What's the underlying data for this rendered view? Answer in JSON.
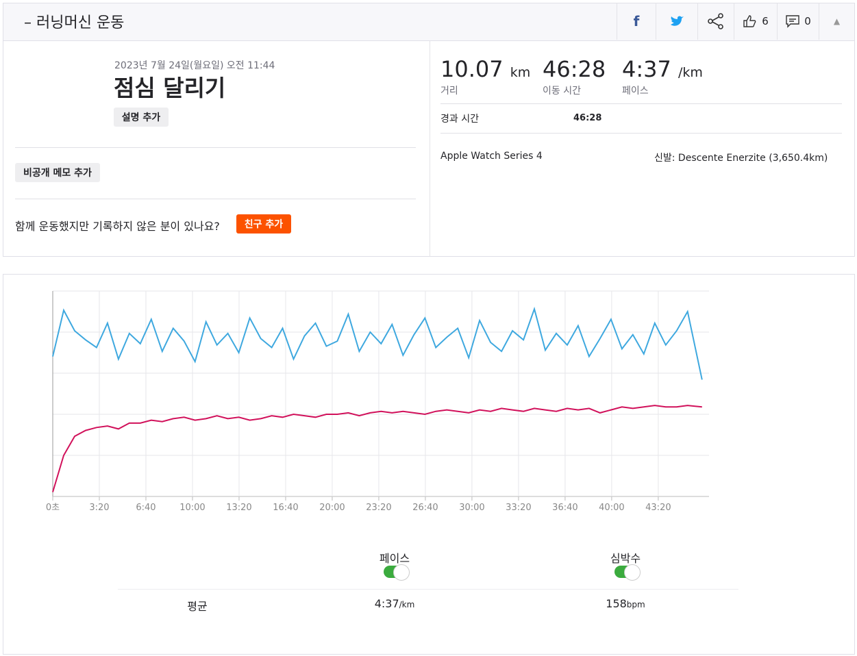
{
  "header": {
    "title": "– 러닝머신 운동",
    "kudos": "6",
    "comments": "0"
  },
  "activity": {
    "date": "2023년 7월 24일(월요일) 오전 11:44",
    "name": "점심 달리기",
    "add_description": "설명 추가",
    "add_private_note": "비공개 메모 추가",
    "friends_question": "함께 운동했지만 기록하지 않은 분이 있나요?",
    "add_friend": "친구 추가"
  },
  "stats": {
    "distance": "10.07",
    "distance_unit": "km",
    "distance_label": "거리",
    "moving_time": "46:28",
    "moving_time_label": "이동 시간",
    "pace": "4:37",
    "pace_unit": "/km",
    "pace_label": "페이스",
    "elapsed_label": "경과 시간",
    "elapsed": "46:28",
    "device": "Apple Watch Series 4",
    "shoes": "신발: Descente Enerzite (3,650.4km)"
  },
  "chart_data": {
    "type": "line",
    "x": [
      0,
      47,
      94,
      141,
      188,
      235,
      282,
      329,
      376,
      423,
      470,
      517,
      564,
      611,
      658,
      705,
      752,
      799,
      846,
      893,
      940,
      987,
      1034,
      1081,
      1128,
      1175,
      1222,
      1269,
      1316,
      1363,
      1410,
      1457,
      1504,
      1551,
      1598,
      1645,
      1692,
      1739,
      1786,
      1833,
      1880,
      1927,
      1974,
      2021,
      2068,
      2115,
      2162,
      2209,
      2256,
      2303,
      2350,
      2397,
      2444,
      2491,
      2538,
      2585,
      2632,
      2679,
      2726,
      2788
    ],
    "xlim": [
      0,
      2818
    ],
    "xticks": [
      {
        "value": 0,
        "label": "0초"
      },
      {
        "value": 200,
        "label": "3:20"
      },
      {
        "value": 400,
        "label": "6:40"
      },
      {
        "value": 600,
        "label": "10:00"
      },
      {
        "value": 800,
        "label": "13:20"
      },
      {
        "value": 1000,
        "label": "16:40"
      },
      {
        "value": 1200,
        "label": "20:00"
      },
      {
        "value": 1400,
        "label": "23:20"
      },
      {
        "value": 1600,
        "label": "26:40"
      },
      {
        "value": 1800,
        "label": "30:00"
      },
      {
        "value": 2000,
        "label": "33:20"
      },
      {
        "value": 2200,
        "label": "36:40"
      },
      {
        "value": 2400,
        "label": "40:00"
      },
      {
        "value": 2600,
        "label": "43:20"
      }
    ],
    "ylim": [
      100,
      240
    ],
    "y2lim": [
      397,
      237
    ],
    "series": [
      {
        "name": "페이스",
        "color": "#3ea8df",
        "axis": "y2",
        "values": [
          288,
          252,
          268,
          275,
          281,
          262,
          290,
          270,
          278,
          259,
          284,
          266,
          276,
          292,
          261,
          279,
          270,
          285,
          258,
          274,
          281,
          266,
          290,
          272,
          262,
          280,
          276,
          255,
          284,
          269,
          278,
          263,
          287,
          271,
          258,
          281,
          273,
          266,
          289,
          260,
          277,
          284,
          268,
          275,
          251,
          283,
          270,
          279,
          264,
          288,
          274,
          259,
          282,
          271,
          286,
          262,
          279,
          268,
          253,
          306
        ]
      },
      {
        "name": "심박수",
        "color": "#d1105a",
        "values": [
          103,
          128,
          141,
          145,
          147,
          148,
          146,
          150,
          150,
          152,
          151,
          153,
          154,
          152,
          153,
          155,
          153,
          154,
          152,
          153,
          155,
          154,
          156,
          155,
          154,
          156,
          156,
          157,
          155,
          157,
          158,
          157,
          158,
          157,
          156,
          158,
          159,
          158,
          157,
          159,
          158,
          160,
          159,
          158,
          160,
          159,
          158,
          160,
          159,
          160,
          157,
          159,
          161,
          160,
          161,
          162,
          161,
          161,
          162,
          161
        ]
      }
    ]
  },
  "summary": {
    "label": "평균",
    "pace": "4:37",
    "pace_unit": "/km",
    "heart_rate": "158",
    "heart_rate_unit": "bpm"
  }
}
